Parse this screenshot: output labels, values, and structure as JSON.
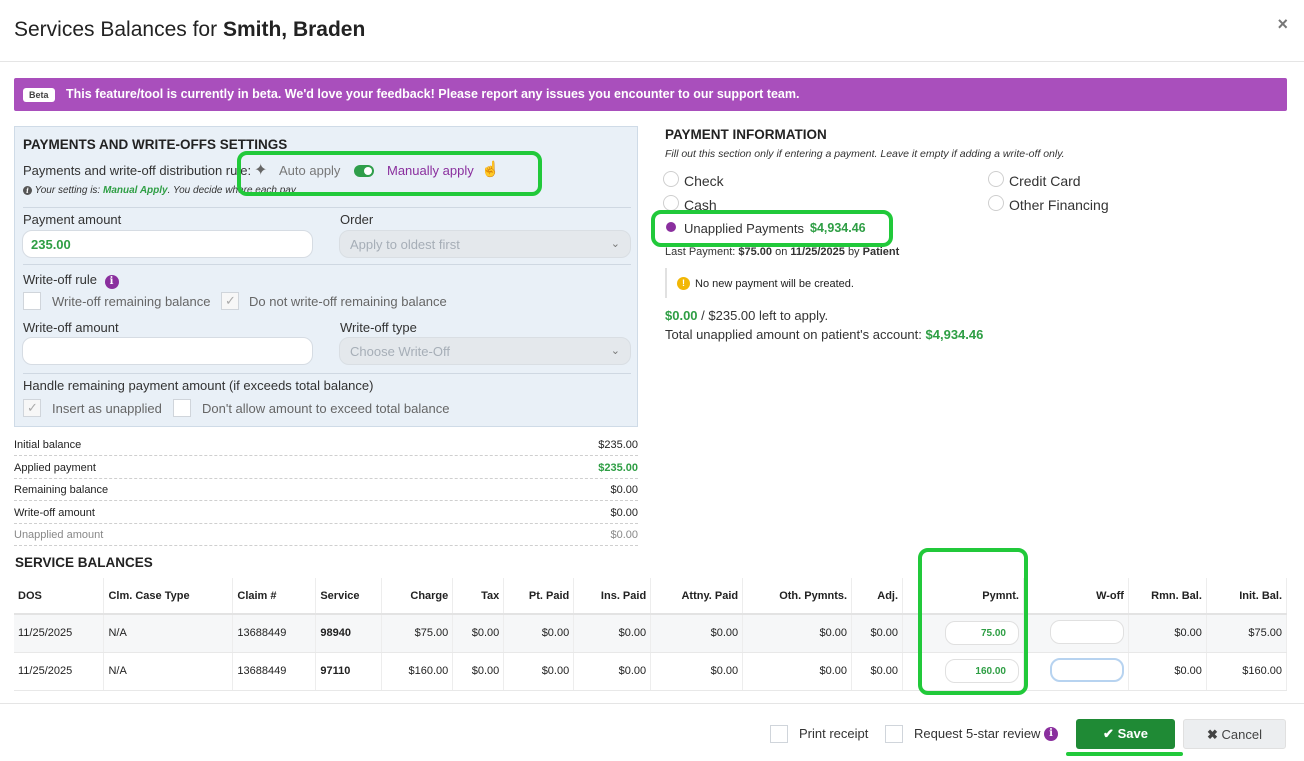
{
  "header": {
    "title_prefix": "Services Balances for",
    "patient_name": "Smith, Braden",
    "close_label": "×"
  },
  "beta_banner": {
    "tag": "Beta",
    "message": "This feature/tool is currently in beta. We'd love your feedback! Please report any issues you encounter to our support team."
  },
  "settings": {
    "title": "PAYMENTS AND WRITE-OFFS SETTINGS",
    "distribution_rule_label": "Payments and write-off distribution rule:",
    "auto_apply": "Auto apply",
    "manually_apply": "Manually apply",
    "setting_note_prefix": "Your setting is:",
    "setting_note_value": "Manual Apply",
    "setting_note_suffix": ". You decide where each pay",
    "payment_amount_label": "Payment amount",
    "payment_amount_value": "235.00",
    "order_label": "Order",
    "order_value": "Apply to oldest first",
    "writeoff_rule_label": "Write-off rule",
    "writeoff_remaining": "Write-off remaining balance",
    "no_writeoff_remaining": "Do not write-off remaining balance",
    "writeoff_amount_label": "Write-off amount",
    "writeoff_type_label": "Write-off type",
    "writeoff_type_placeholder": "Choose Write-Off",
    "handle_remaining_label": "Handle remaining payment amount (if exceeds total balance)",
    "insert_unapplied": "Insert as unapplied",
    "dont_allow_exceed": "Don't allow amount to exceed total balance"
  },
  "balances": [
    {
      "label": "Initial balance",
      "value": "$235.00"
    },
    {
      "label": "Applied payment",
      "value": "$235.00"
    },
    {
      "label": "Remaining balance",
      "value": "$0.00"
    },
    {
      "label": "Write-off amount",
      "value": "$0.00"
    },
    {
      "label": "Unapplied amount",
      "value": "$0.00"
    }
  ],
  "payment_info": {
    "title": "PAYMENT INFORMATION",
    "subtitle": "Fill out this section only if entering a payment. Leave it empty if adding a write-off only.",
    "methods": {
      "check": "Check",
      "cash": "Cash",
      "credit_card": "Credit Card",
      "other_financing": "Other Financing",
      "unapplied": "Unapplied Payments",
      "unapplied_amount": "$4,934.46"
    },
    "last_payment_prefix": "Last Payment:",
    "last_payment_amount": "$75.00",
    "last_payment_on": "on",
    "last_payment_date": "11/25/2025",
    "last_payment_by": "by",
    "last_payment_source": "Patient",
    "warning": "No new payment will be created.",
    "left_amount": "$0.00",
    "left_rest": "/ $235.00 left to apply.",
    "total_unapplied_label": "Total unapplied amount on patient's account:",
    "total_unapplied_value": "$4,934.46"
  },
  "service_balances": {
    "title": "SERVICE BALANCES",
    "columns": [
      "DOS",
      "Clm. Case Type",
      "Claim #",
      "Service",
      "Charge",
      "Tax",
      "Pt. Paid",
      "Ins. Paid",
      "Attny. Paid",
      "Oth. Pymnts.",
      "Adj.",
      "Pymnt.",
      "W-off",
      "Rmn. Bal.",
      "Init. Bal."
    ],
    "rows": [
      {
        "dos": "11/25/2025",
        "case_type": "N/A",
        "claim": "13688449",
        "service": "98940",
        "charge": "$75.00",
        "tax": "$0.00",
        "pt_paid": "$0.00",
        "ins_paid": "$0.00",
        "attny_paid": "$0.00",
        "oth_pymnts": "$0.00",
        "adj": "$0.00",
        "pymnt": "75.00",
        "woff": "",
        "rmn_bal": "$0.00",
        "init_bal": "$75.00"
      },
      {
        "dos": "11/25/2025",
        "case_type": "N/A",
        "claim": "13688449",
        "service": "97110",
        "charge": "$160.00",
        "tax": "$0.00",
        "pt_paid": "$0.00",
        "ins_paid": "$0.00",
        "attny_paid": "$0.00",
        "oth_pymnts": "$0.00",
        "adj": "$0.00",
        "pymnt": "160.00",
        "woff": "",
        "rmn_bal": "$0.00",
        "init_bal": "$160.00"
      }
    ]
  },
  "footer": {
    "print_receipt": "Print receipt",
    "request_review": "Request 5-star review",
    "save": "Save",
    "cancel": "Cancel"
  },
  "colors": {
    "accent_purple": "#a94fbc",
    "highlight_green": "#21c93a",
    "save_green": "#1f8a35"
  }
}
